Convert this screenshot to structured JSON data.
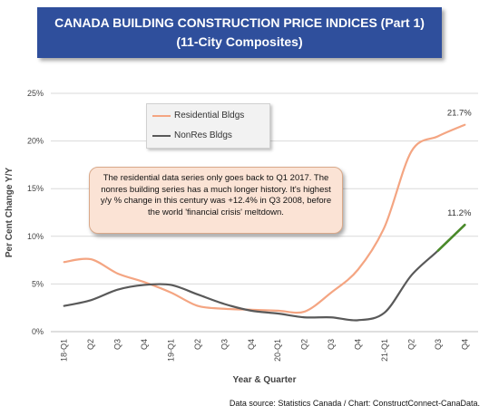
{
  "title": {
    "line1": "CANADA BUILDING CONSTRUCTION PRICE INDICES (Part 1)",
    "line2": "(11-City Composites)"
  },
  "annotation": "The residential data series only goes back to Q1 2017. The nonres building series has a much longer history. It's highest y/y % change in this century was +12.4% in Q3 2008, before the world 'financial crisis' meltdown.",
  "source": "Data source: Statistics Canada / Chart: ConstructConnect-CanaData.",
  "colors": {
    "residential": "#f4a582",
    "nonres": "#595959",
    "nonres_highlight": "#4a8a2a",
    "grid": "#d9d9d9",
    "title_bg": "#2f4f9c"
  },
  "chart_data": {
    "type": "line",
    "title": "CANADA BUILDING CONSTRUCTION PRICE INDICES (Part 1) (11-City Composites)",
    "xlabel": "Year & Quarter",
    "ylabel": "Per Cent Change Y/Y",
    "ylim": [
      0,
      25
    ],
    "yticks": [
      0,
      5,
      10,
      15,
      20,
      25
    ],
    "ytick_labels": [
      "0%",
      "5%",
      "10%",
      "15%",
      "20%",
      "25%"
    ],
    "categories": [
      "18-Q1",
      "Q2",
      "Q3",
      "Q4",
      "19-Q1",
      "Q2",
      "Q3",
      "Q4",
      "20-Q1",
      "Q2",
      "Q3",
      "Q4",
      "21-Q1",
      "Q2",
      "Q3",
      "Q4"
    ],
    "series": [
      {
        "name": "Residential Bldgs",
        "values": [
          7.3,
          7.6,
          6.1,
          5.2,
          4.1,
          2.7,
          2.4,
          2.3,
          2.2,
          2.1,
          4.1,
          6.5,
          11.0,
          18.9,
          20.5,
          21.7
        ]
      },
      {
        "name": "NonRes Bldgs",
        "values": [
          2.7,
          3.3,
          4.4,
          4.9,
          4.9,
          3.9,
          2.9,
          2.2,
          1.9,
          1.5,
          1.5,
          1.2,
          2.0,
          5.9,
          8.5,
          11.2
        ]
      }
    ],
    "end_labels": [
      "21.7%",
      "11.2%"
    ],
    "grid": true,
    "legend_position": "top-left"
  }
}
